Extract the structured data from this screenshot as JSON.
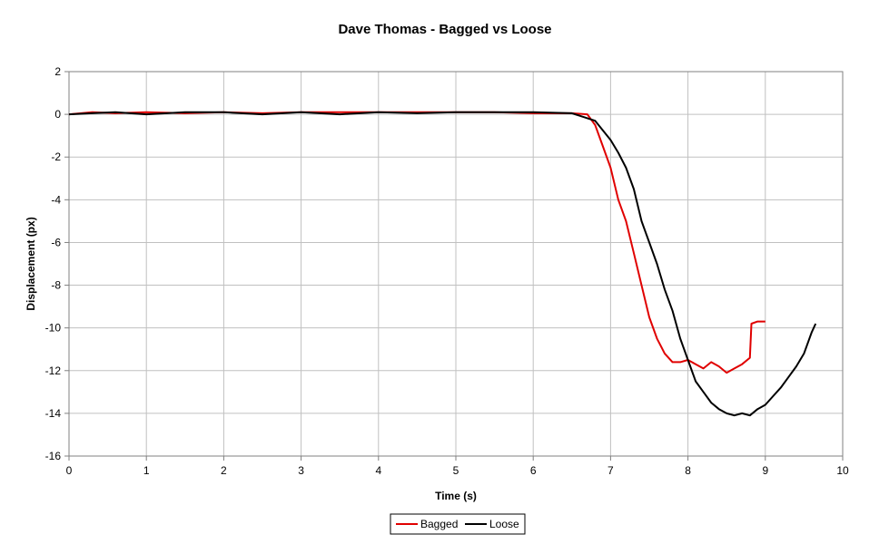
{
  "chart_data": {
    "type": "line",
    "title": "Dave Thomas - Bagged vs Loose",
    "xlabel": "Time (s)",
    "ylabel": "Displacement (px)",
    "xlim": [
      0,
      10
    ],
    "ylim": [
      -16,
      2
    ],
    "xticks": [
      "0",
      "1",
      "2",
      "3",
      "4",
      "5",
      "6",
      "7",
      "8",
      "9",
      "10"
    ],
    "yticks": [
      "2",
      "0",
      "-2",
      "-4",
      "-6",
      "-8",
      "-10",
      "-12",
      "-14",
      "-16"
    ],
    "grid": true,
    "legend_position": "bottom",
    "series": [
      {
        "name": "Bagged",
        "color": "#e00000",
        "points": [
          [
            0,
            0
          ],
          [
            0.3,
            0.1
          ],
          [
            0.6,
            0.05
          ],
          [
            1.0,
            0.1
          ],
          [
            1.5,
            0.05
          ],
          [
            2.0,
            0.1
          ],
          [
            2.5,
            0.05
          ],
          [
            3.0,
            0.1
          ],
          [
            3.5,
            0.1
          ],
          [
            4.0,
            0.1
          ],
          [
            4.5,
            0.1
          ],
          [
            5.0,
            0.1
          ],
          [
            5.5,
            0.1
          ],
          [
            6.0,
            0.05
          ],
          [
            6.5,
            0.05
          ],
          [
            6.7,
            0.0
          ],
          [
            6.8,
            -0.5
          ],
          [
            6.9,
            -1.5
          ],
          [
            7.0,
            -2.5
          ],
          [
            7.1,
            -4.0
          ],
          [
            7.2,
            -5.0
          ],
          [
            7.3,
            -6.5
          ],
          [
            7.4,
            -8.0
          ],
          [
            7.5,
            -9.5
          ],
          [
            7.6,
            -10.5
          ],
          [
            7.7,
            -11.2
          ],
          [
            7.8,
            -11.6
          ],
          [
            7.9,
            -11.6
          ],
          [
            8.0,
            -11.5
          ],
          [
            8.1,
            -11.7
          ],
          [
            8.2,
            -11.9
          ],
          [
            8.3,
            -11.6
          ],
          [
            8.4,
            -11.8
          ],
          [
            8.5,
            -12.1
          ],
          [
            8.6,
            -11.9
          ],
          [
            8.7,
            -11.7
          ],
          [
            8.8,
            -11.4
          ],
          [
            8.82,
            -9.8
          ],
          [
            8.9,
            -9.7
          ],
          [
            9.0,
            -9.7
          ]
        ]
      },
      {
        "name": "Loose",
        "color": "#000000",
        "points": [
          [
            0,
            0
          ],
          [
            0.3,
            0.05
          ],
          [
            0.6,
            0.1
          ],
          [
            1.0,
            0.0
          ],
          [
            1.5,
            0.1
          ],
          [
            2.0,
            0.1
          ],
          [
            2.5,
            0.0
          ],
          [
            3.0,
            0.1
          ],
          [
            3.5,
            0.0
          ],
          [
            4.0,
            0.1
          ],
          [
            4.5,
            0.05
          ],
          [
            5.0,
            0.1
          ],
          [
            5.5,
            0.1
          ],
          [
            6.0,
            0.1
          ],
          [
            6.5,
            0.05
          ],
          [
            6.8,
            -0.3
          ],
          [
            7.0,
            -1.2
          ],
          [
            7.1,
            -1.8
          ],
          [
            7.2,
            -2.5
          ],
          [
            7.3,
            -3.5
          ],
          [
            7.4,
            -5.0
          ],
          [
            7.5,
            -6.0
          ],
          [
            7.6,
            -7.0
          ],
          [
            7.7,
            -8.2
          ],
          [
            7.8,
            -9.2
          ],
          [
            7.9,
            -10.5
          ],
          [
            8.0,
            -11.5
          ],
          [
            8.1,
            -12.5
          ],
          [
            8.2,
            -13.0
          ],
          [
            8.3,
            -13.5
          ],
          [
            8.4,
            -13.8
          ],
          [
            8.5,
            -14.0
          ],
          [
            8.6,
            -14.1
          ],
          [
            8.7,
            -14.0
          ],
          [
            8.8,
            -14.1
          ],
          [
            8.9,
            -13.8
          ],
          [
            9.0,
            -13.6
          ],
          [
            9.1,
            -13.2
          ],
          [
            9.2,
            -12.8
          ],
          [
            9.3,
            -12.3
          ],
          [
            9.4,
            -11.8
          ],
          [
            9.5,
            -11.2
          ],
          [
            9.6,
            -10.2
          ],
          [
            9.65,
            -9.8
          ]
        ]
      }
    ]
  }
}
